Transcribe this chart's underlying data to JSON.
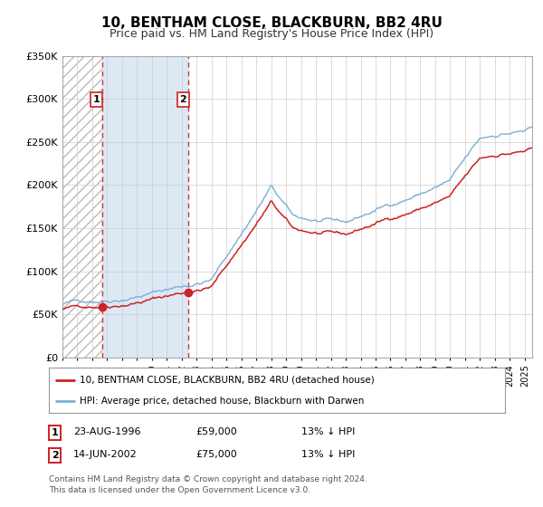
{
  "title": "10, BENTHAM CLOSE, BLACKBURN, BB2 4RU",
  "subtitle": "Price paid vs. HM Land Registry's House Price Index (HPI)",
  "ylim": [
    0,
    350000
  ],
  "yticks": [
    0,
    50000,
    100000,
    150000,
    200000,
    250000,
    300000,
    350000
  ],
  "ytick_labels": [
    "£0",
    "£50K",
    "£100K",
    "£150K",
    "£200K",
    "£250K",
    "£300K",
    "£350K"
  ],
  "xlim_start": 1994.0,
  "xlim_end": 2025.5,
  "sale1_date": 1996.644,
  "sale1_price": 59000,
  "sale2_date": 2002.452,
  "sale2_price": 75000,
  "hpi_color": "#7BAFD4",
  "price_color": "#CC2222",
  "shaded_region_color": "#DCE9F5",
  "hatch_color": "#CCCCCC",
  "legend_label_price": "10, BENTHAM CLOSE, BLACKBURN, BB2 4RU (detached house)",
  "legend_label_hpi": "HPI: Average price, detached house, Blackburn with Darwen",
  "annotation1_date": "23-AUG-1996",
  "annotation1_price": "£59,000",
  "annotation1_hpi": "13% ↓ HPI",
  "annotation2_date": "14-JUN-2002",
  "annotation2_price": "£75,000",
  "annotation2_hpi": "13% ↓ HPI",
  "footer": "Contains HM Land Registry data © Crown copyright and database right 2024.\nThis data is licensed under the Open Government Licence v3.0.",
  "background_color": "#ffffff",
  "plot_bg_color": "#ffffff",
  "grid_color": "#cccccc",
  "title_fontsize": 11,
  "subtitle_fontsize": 9
}
